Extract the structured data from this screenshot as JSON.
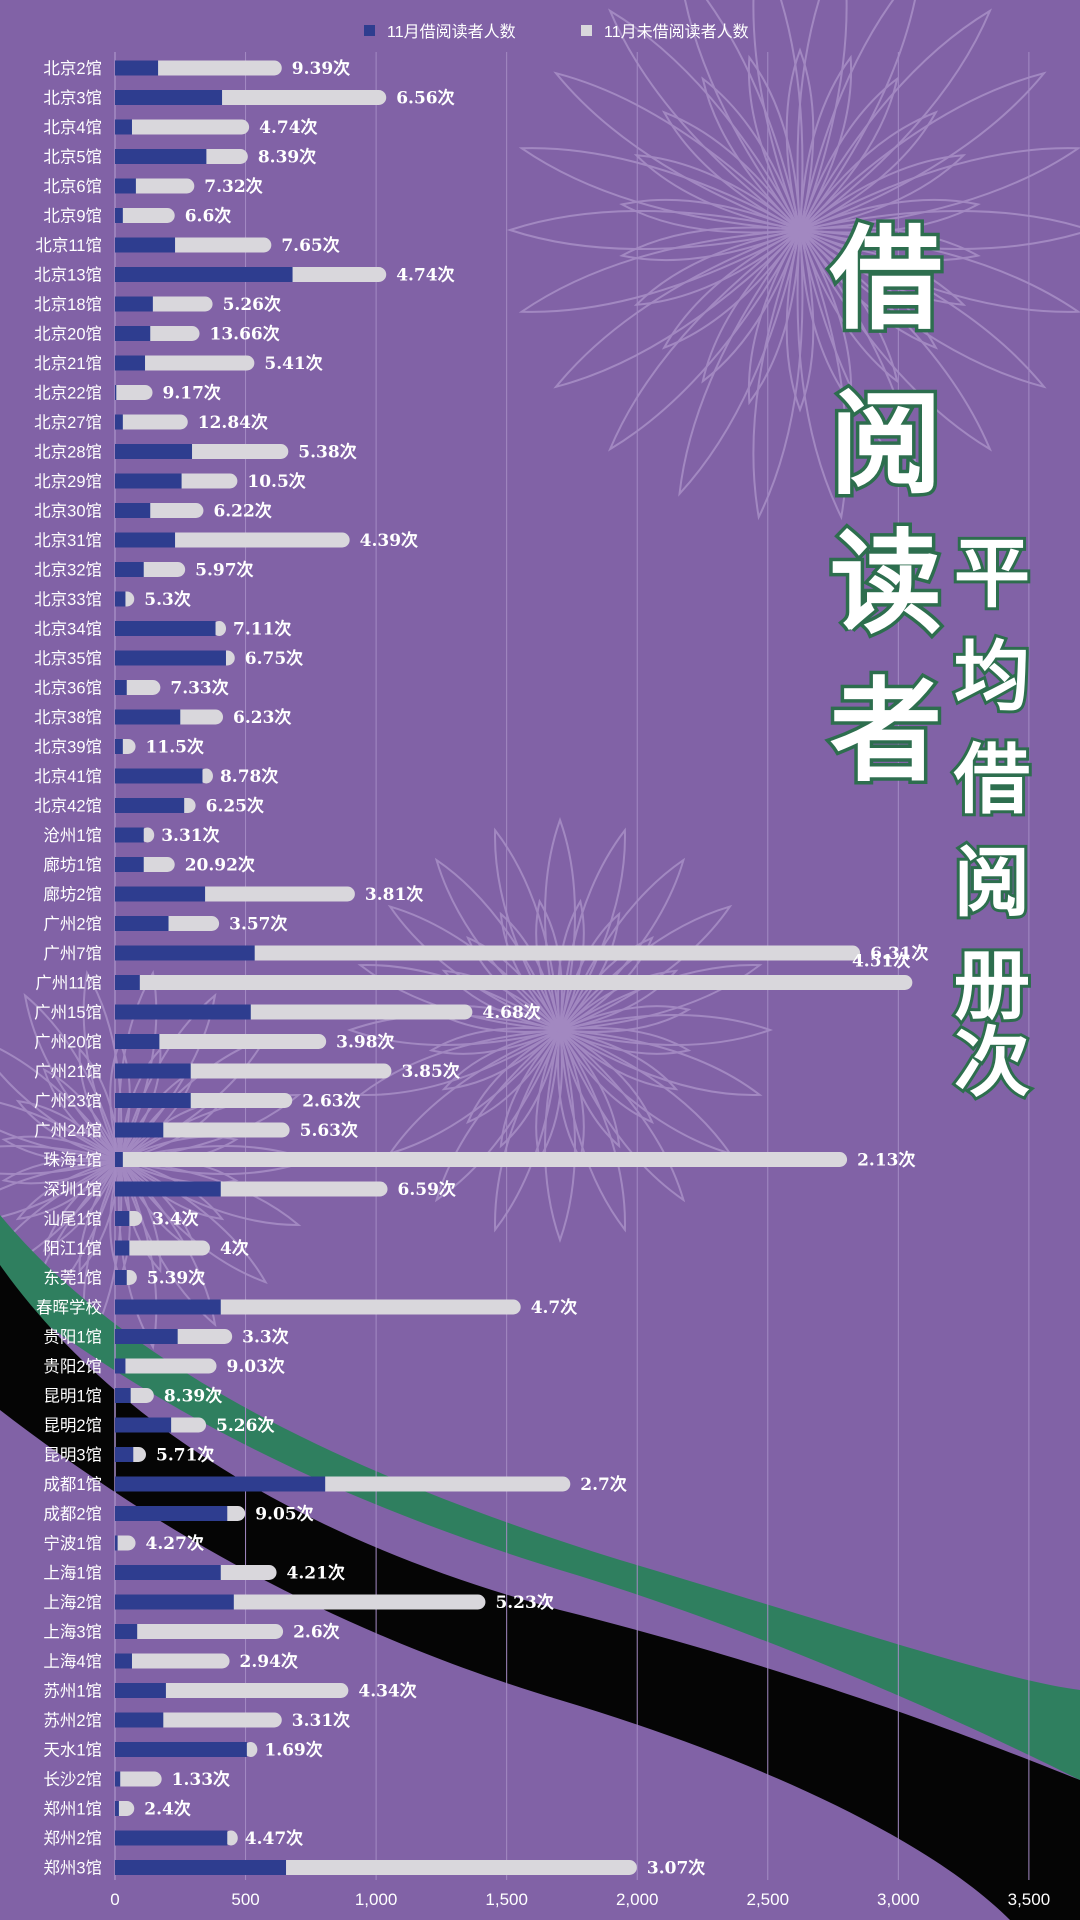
{
  "colors": {
    "background": "#8162a6",
    "borrowed": "#2e3d8f",
    "not_borrowed": "#d9d7dc",
    "gridline": "#a48bc4",
    "title_fill": "#ffffff",
    "title_stroke": "#2d6e4e",
    "ribbon_green": "#2f7f5f",
    "ribbon_black": "#050505"
  },
  "title": {
    "main": [
      "借",
      "阅",
      "读",
      "者"
    ],
    "sub": [
      "平",
      "均",
      "借",
      "阅",
      "册",
      "次"
    ]
  },
  "chart_data": {
    "type": "bar",
    "orientation": "horizontal",
    "stacked": true,
    "legend_position": "top",
    "grid": true,
    "xlim": [
      0,
      3600
    ],
    "xticks": [
      "0",
      "500",
      "1,000",
      "1,500",
      "2,000",
      "2,500",
      "3,000",
      "3,500"
    ],
    "xtick_values": [
      0,
      500,
      1000,
      1500,
      2000,
      2500,
      3000,
      3500
    ],
    "series": [
      {
        "name": "11月借阅读者人数",
        "color": "#2e3d8f",
        "values": [
          165,
          410,
          65,
          350,
          80,
          30,
          230,
          680,
          145,
          135,
          115,
          5,
          30,
          295,
          255,
          135,
          230,
          110,
          40,
          385,
          425,
          45,
          250,
          30,
          335,
          265,
          110,
          110,
          345,
          205,
          535,
          95,
          520,
          170,
          290,
          290,
          185,
          30,
          405,
          55,
          55,
          45,
          405,
          240,
          40,
          60,
          215,
          70,
          805,
          430,
          10,
          405,
          455,
          85,
          65,
          195,
          185,
          505,
          20,
          15,
          430,
          655
        ]
      },
      {
        "name": "11月未借阅读者人数",
        "color": "#d9d7dc",
        "values": [
          445,
          600,
          420,
          130,
          195,
          170,
          340,
          330,
          200,
          160,
          390,
          110,
          220,
          340,
          185,
          175,
          640,
          130,
          5,
          0,
          5,
          100,
          135,
          20,
          0,
          15,
          0,
          90,
          545,
          165,
          2290,
          2930,
          820,
          610,
          740,
          360,
          455,
          2745,
          610,
          20,
          280,
          10,
          1120,
          180,
          320,
          60,
          105,
          20,
          910,
          40,
          40,
          185,
          935,
          530,
          345,
          670,
          425,
          0,
          130,
          30,
          0,
          1315
        ]
      }
    ],
    "categories": [
      "北京2馆",
      "北京3馆",
      "北京4馆",
      "北京5馆",
      "北京6馆",
      "北京9馆",
      "北京11馆",
      "北京13馆",
      "北京18馆",
      "北京20馆",
      "北京21馆",
      "北京22馆",
      "北京27馆",
      "北京28馆",
      "北京29馆",
      "北京30馆",
      "北京31馆",
      "北京32馆",
      "北京33馆",
      "北京34馆",
      "北京35馆",
      "北京36馆",
      "北京38馆",
      "北京39馆",
      "北京41馆",
      "北京42馆",
      "沧州1馆",
      "廊坊1馆",
      "廊坊2馆",
      "广州2馆",
      "广州7馆",
      "广州11馆",
      "广州15馆",
      "广州20馆",
      "广州21馆",
      "广州23馆",
      "广州24馆",
      "珠海1馆",
      "深圳1馆",
      "汕尾1馆",
      "阳江1馆",
      "东莞1馆",
      "春晖学校",
      "贵阳1馆",
      "贵阳2馆",
      "昆明1馆",
      "昆明2馆",
      "昆明3馆",
      "成都1馆",
      "成都2馆",
      "宁波1馆",
      "上海1馆",
      "上海2馆",
      "上海3馆",
      "上海4馆",
      "苏州1馆",
      "苏州2馆",
      "天水1馆",
      "长沙2馆",
      "郑州1馆",
      "郑州2馆",
      "郑州3馆"
    ],
    "data_labels": [
      "9.39次",
      "6.56次",
      "4.74次",
      "8.39次",
      "7.32次",
      "6.6次",
      "7.65次",
      "4.74次",
      "5.26次",
      "13.66次",
      "5.41次",
      "9.17次",
      "12.84次",
      "5.38次",
      "10.5次",
      "6.22次",
      "4.39次",
      "5.97次",
      "5.3次",
      "7.11次",
      "6.75次",
      "7.33次",
      "6.23次",
      "11.5次",
      "8.78次",
      "6.25次",
      "3.31次",
      "20.92次",
      "3.81次",
      "3.57次",
      "6.31次",
      "4.51次",
      "4.68次",
      "3.98次",
      "3.85次",
      "2.63次",
      "5.63次",
      "2.13次",
      "6.59次",
      "3.4次",
      "4次",
      "5.39次",
      "4.7次",
      "3.3次",
      "9.03次",
      "8.39次",
      "5.26次",
      "5.71次",
      "2.7次",
      "9.05次",
      "4.27次",
      "4.21次",
      "5.23次",
      "2.6次",
      "2.94次",
      "4.34次",
      "3.31次",
      "1.69次",
      "1.33次",
      "2.4次",
      "4.47次",
      "3.07次"
    ]
  }
}
